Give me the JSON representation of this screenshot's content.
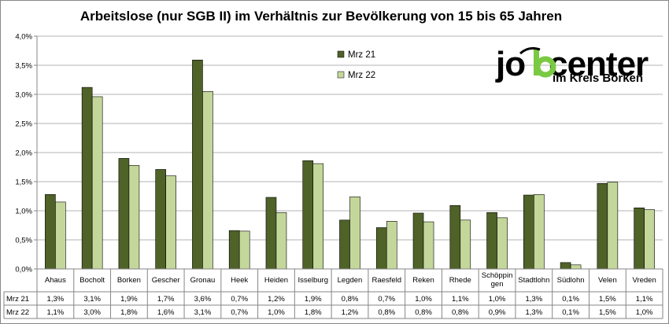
{
  "chart_data": {
    "type": "bar",
    "title": "Arbeitslose (nur SGB II) im Verhältnis zur Bevölkerung von 15 bis 65 Jahren",
    "categories": [
      "Ahaus",
      "Bocholt",
      "Borken",
      "Gescher",
      "Gronau",
      "Heek",
      "Heiden",
      "Isselburg",
      "Legden",
      "Raesfeld",
      "Reken",
      "Rhede",
      "Schöppingen",
      "Stadtlohn",
      "Südlohn",
      "Velen",
      "Vreden"
    ],
    "category_display": [
      "Ahaus",
      "Bocholt",
      "Borken",
      "Gescher",
      "Gronau",
      "Heek",
      "Heiden",
      "Isselburg",
      "Legden",
      "Raesfeld",
      "Reken",
      "Rhede",
      "Schöppin|gen",
      "Stadtlohn",
      "Südlohn",
      "Velen",
      "Vreden"
    ],
    "series": [
      {
        "name": "Mrz 21",
        "color": "#4F6228",
        "values": [
          1.28,
          3.12,
          1.9,
          1.71,
          3.59,
          0.66,
          1.23,
          1.86,
          0.84,
          0.71,
          0.96,
          1.09,
          0.97,
          1.27,
          0.11,
          1.47,
          1.05
        ],
        "labels": [
          "1,3%",
          "3,1%",
          "1,9%",
          "1,7%",
          "3,6%",
          "0,7%",
          "1,2%",
          "1,9%",
          "0,8%",
          "0,7%",
          "1,0%",
          "1,1%",
          "1,0%",
          "1,3%",
          "0,1%",
          "1,5%",
          "1,1%"
        ]
      },
      {
        "name": "Mrz 22",
        "color": "#C4D79B",
        "values": [
          1.15,
          2.96,
          1.78,
          1.6,
          3.05,
          0.65,
          0.97,
          1.81,
          1.24,
          0.82,
          0.81,
          0.84,
          0.88,
          1.28,
          0.07,
          1.49,
          1.02
        ],
        "labels": [
          "1,1%",
          "3,0%",
          "1,8%",
          "1,6%",
          "3,1%",
          "0,7%",
          "1,0%",
          "1,8%",
          "1,2%",
          "0,8%",
          "0,8%",
          "0,8%",
          "0,9%",
          "1,3%",
          "0,1%",
          "1,5%",
          "1,0%"
        ]
      }
    ],
    "yticks": [
      "0,0%",
      "0,5%",
      "1,0%",
      "1,5%",
      "2,0%",
      "2,5%",
      "3,0%",
      "3,5%",
      "4,0%"
    ],
    "ylim": [
      0,
      4.0
    ],
    "grid": true,
    "legend_position": "top-center",
    "data_table": true
  },
  "logo": {
    "text_before": "jo",
    "text_after": "center",
    "subtitle": "im Kreis Borken",
    "accent_color": "#7AC943"
  }
}
